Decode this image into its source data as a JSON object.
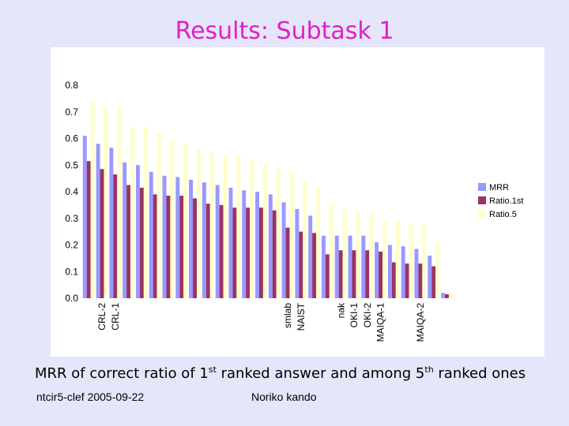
{
  "title": "Results: Subtask 1",
  "caption": {
    "part1": "MRR of correct ratio of 1",
    "sup1": "st",
    "part2": " ranked answer and among 5",
    "sup2": "th",
    "part3": " ranked ones"
  },
  "footer": {
    "left": "ntcir5-clef  2005-09-22",
    "center": "Noriko kando"
  },
  "colors": {
    "MRR": "#9999ff",
    "Ratio.1st": "#993366",
    "Ratio.5": "#ffffcc",
    "title": "#e020c8",
    "background": "#e6e6fa"
  },
  "chart_data": {
    "type": "bar",
    "ylim": [
      0,
      0.8
    ],
    "yticks": [
      "0.0",
      "0.1",
      "0.2",
      "0.3",
      "0.4",
      "0.5",
      "0.6",
      "0.7",
      "0.8"
    ],
    "grid": false,
    "legend_position": "right",
    "categories": [
      "",
      "CRL-2",
      "CRL-1",
      "",
      "",
      "",
      "",
      "",
      "",
      "",
      "",
      "",
      "",
      "",
      "",
      "smlab",
      "NAIST",
      "",
      "",
      "nak",
      "OKI-1",
      "OKI-2",
      "MAIQA-1",
      "",
      "",
      "MAIQA-2",
      "",
      ""
    ],
    "series": [
      {
        "name": "MRR",
        "values": [
          0.61,
          0.58,
          0.565,
          0.51,
          0.5,
          0.475,
          0.46,
          0.455,
          0.445,
          0.435,
          0.425,
          0.415,
          0.405,
          0.4,
          0.39,
          0.36,
          0.335,
          0.31,
          0.235,
          0.235,
          0.235,
          0.235,
          0.21,
          0.2,
          0.195,
          0.185,
          0.16,
          0.02
        ]
      },
      {
        "name": "Ratio.1st",
        "values": [
          0.515,
          0.485,
          0.465,
          0.425,
          0.415,
          0.39,
          0.385,
          0.385,
          0.375,
          0.355,
          0.35,
          0.34,
          0.34,
          0.34,
          0.33,
          0.265,
          0.25,
          0.245,
          0.165,
          0.18,
          0.18,
          0.18,
          0.175,
          0.135,
          0.13,
          0.13,
          0.12,
          0.015
        ]
      },
      {
        "name": "Ratio.5",
        "values": [
          0.74,
          0.72,
          0.72,
          0.645,
          0.645,
          0.625,
          0.6,
          0.58,
          0.56,
          0.55,
          0.54,
          0.54,
          0.52,
          0.5,
          0.49,
          0.48,
          0.44,
          0.42,
          0.36,
          0.33,
          0.32,
          0.32,
          0.29,
          0.29,
          0.28,
          0.28,
          0.21,
          0.03
        ]
      }
    ]
  }
}
